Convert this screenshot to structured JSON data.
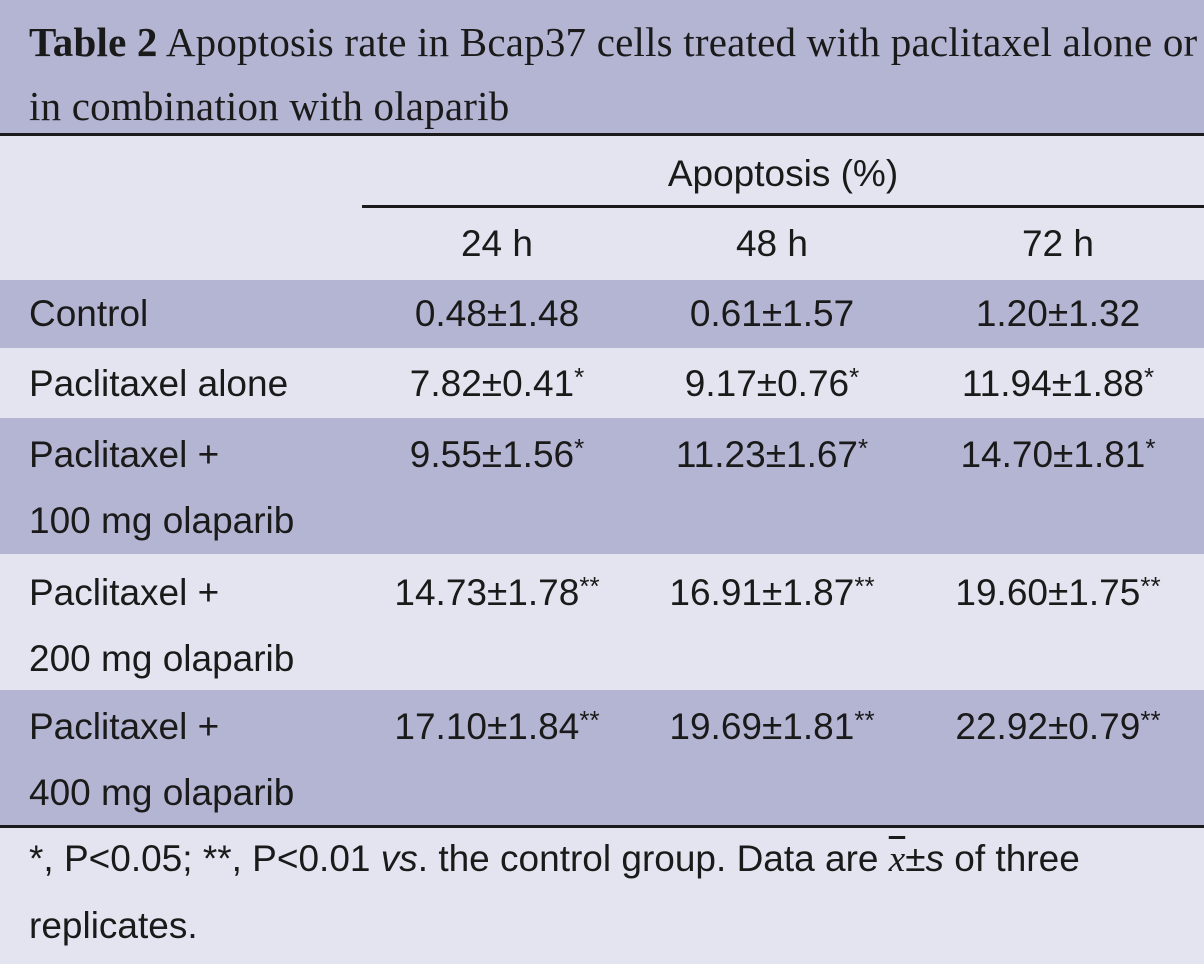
{
  "title": {
    "label": "Table 2",
    "text": "Apoptosis rate in Bcap37 cells treated with paclitaxel alone or in combination with olaparib"
  },
  "header": {
    "group": "Apoptosis (%)",
    "columns": [
      "24 h",
      "48 h",
      "72 h"
    ]
  },
  "rows": [
    {
      "label": [
        "Control"
      ],
      "values": [
        [
          "0.48±1.48",
          ""
        ],
        [
          "0.61±1.57",
          ""
        ],
        [
          "1.20±1.32",
          ""
        ]
      ]
    },
    {
      "label": [
        "Paclitaxel alone"
      ],
      "values": [
        [
          "7.82±0.41",
          "*"
        ],
        [
          "9.17±0.76",
          "*"
        ],
        [
          "11.94±1.88",
          "*"
        ]
      ]
    },
    {
      "label": [
        "Paclitaxel +",
        "100 mg olaparib"
      ],
      "values": [
        [
          "9.55±1.56",
          "*"
        ],
        [
          "11.23±1.67",
          "*"
        ],
        [
          "14.70±1.81",
          "*"
        ]
      ]
    },
    {
      "label": [
        "Paclitaxel +",
        "200 mg olaparib"
      ],
      "values": [
        [
          "14.73±1.78",
          "**"
        ],
        [
          "16.91±1.87",
          "**"
        ],
        [
          "19.60±1.75",
          "**"
        ]
      ]
    },
    {
      "label": [
        "Paclitaxel +",
        "400 mg olaparib"
      ],
      "values": [
        [
          "17.10±1.84",
          "**"
        ],
        [
          "19.69±1.81",
          "**"
        ],
        [
          "22.92±0.79",
          "**"
        ]
      ]
    }
  ],
  "footnote": {
    "pre": "*, P<0.05; **, P<0.01 ",
    "vs": "vs",
    "mid": ". the control group. Data are ",
    "xbar": "x",
    "pm": "±",
    "s": "s",
    "post": " of three replicates."
  }
}
